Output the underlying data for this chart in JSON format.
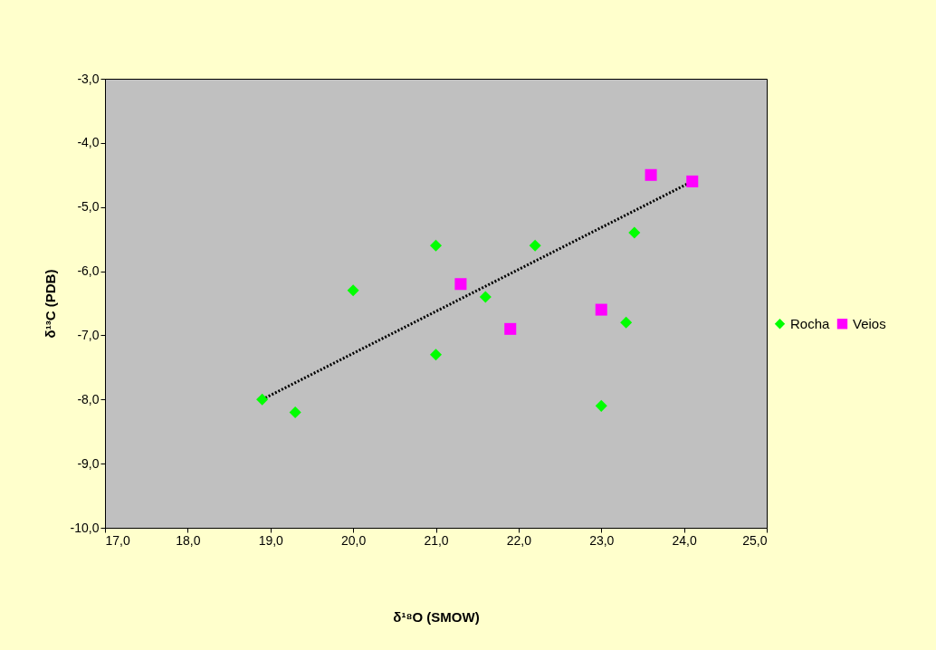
{
  "chart_data": {
    "type": "scatter",
    "xlabel": "δ¹⁸O (SMOW)",
    "ylabel": "δ¹³C (PDB)",
    "xlim": [
      17,
      25
    ],
    "ylim": [
      -10,
      -3
    ],
    "xticks": [
      {
        "value": 17,
        "label": "17,0"
      },
      {
        "value": 18,
        "label": "18,0"
      },
      {
        "value": 19,
        "label": "19,0"
      },
      {
        "value": 20,
        "label": "20,0"
      },
      {
        "value": 21,
        "label": "21,0"
      },
      {
        "value": 22,
        "label": "22,0"
      },
      {
        "value": 23,
        "label": "23,0"
      },
      {
        "value": 24,
        "label": "24,0"
      },
      {
        "value": 25,
        "label": "25,0"
      }
    ],
    "yticks": [
      {
        "value": -10,
        "label": "-10,0"
      },
      {
        "value": -9,
        "label": "-9,0"
      },
      {
        "value": -8,
        "label": "-8,0"
      },
      {
        "value": -7,
        "label": "-7,0"
      },
      {
        "value": -6,
        "label": "-6,0"
      },
      {
        "value": -5,
        "label": "-5,0"
      },
      {
        "value": -4,
        "label": "-4,0"
      },
      {
        "value": -3,
        "label": "-3,0"
      }
    ],
    "grid": false,
    "legend": "right",
    "series": [
      {
        "name": "Rocha",
        "color": "#00ff00",
        "marker": "diamond",
        "x": [
          18.9,
          19.3,
          20.0,
          21.0,
          21.0,
          21.6,
          22.2,
          23.0,
          23.3,
          23.4
        ],
        "values": [
          -8.0,
          -8.2,
          -6.3,
          -5.6,
          -7.3,
          -6.4,
          -5.6,
          -8.1,
          -6.8,
          -5.4
        ]
      },
      {
        "name": "Veios",
        "color": "#ff00ff",
        "marker": "square",
        "x": [
          21.3,
          21.9,
          23.0,
          23.6,
          24.1
        ],
        "values": [
          -6.2,
          -6.9,
          -6.6,
          -4.5,
          -4.6
        ]
      },
      {
        "type": "line",
        "color": "#000000",
        "line_style": "dotted",
        "x": [
          18.9,
          24.1
        ],
        "values": [
          -8.0,
          -4.6
        ]
      }
    ]
  }
}
